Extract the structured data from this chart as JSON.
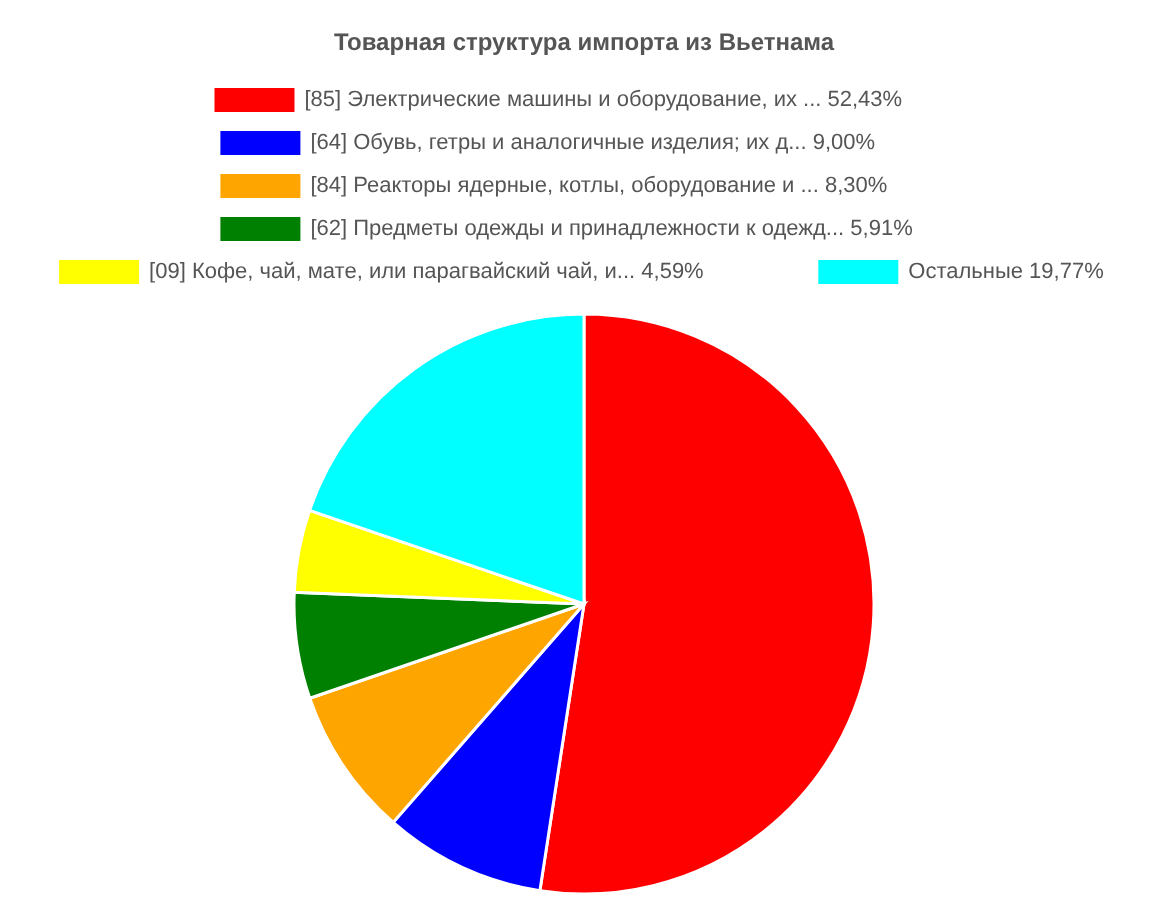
{
  "chart_data": {
    "type": "pie",
    "title": "Товарная структура импорта из Вьетнама",
    "categories": [
      "[85] Электрические машины и оборудование, их ...",
      "[64] Обувь, гетры и аналогичные изделия; их д...",
      "[84] Реакторы ядерные, котлы, оборудование и ...",
      "[62] Предметы одежды и принадлежности к одежд...",
      "[09] Кофе, чай, мате, или парагвайский чай, и...",
      "Остальные "
    ],
    "values": [
      52.43,
      9.0,
      8.3,
      5.91,
      4.59,
      19.77
    ],
    "value_labels": [
      "52,43%",
      "9,00%",
      "8,30%",
      "5,91%",
      "4,59%",
      "19,77%"
    ],
    "colors": [
      "#ff0000",
      "#0000ff",
      "#ffa500",
      "#008000",
      "#ffff00",
      "#00ffff"
    ],
    "legend": "top"
  }
}
